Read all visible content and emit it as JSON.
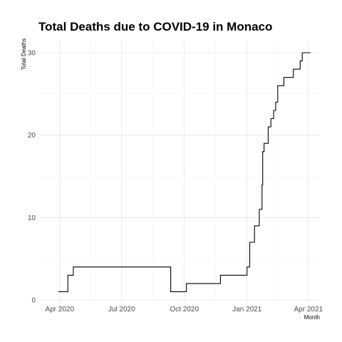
{
  "chart_data": {
    "type": "line",
    "title": "Total Deaths due to COVID-19 in Monaco",
    "xlabel": "Month",
    "ylabel": "Total Deaths",
    "xlim": [
      "2020-03-03",
      "2021-04-19"
    ],
    "ylim": [
      0,
      30
    ],
    "grid": true,
    "legend": "none",
    "x_ticks": [
      {
        "date": "2020-04-01",
        "label": "Apr 2020"
      },
      {
        "date": "2020-07-01",
        "label": "Jul 2020"
      },
      {
        "date": "2020-10-01",
        "label": "Oct 2020"
      },
      {
        "date": "2021-01-01",
        "label": "Jan 2021"
      },
      {
        "date": "2021-04-01",
        "label": "Apr 2021"
      }
    ],
    "y_ticks": [
      0,
      10,
      20,
      30
    ],
    "series": [
      {
        "color": "#000000",
        "points": [
          {
            "x": "2020-03-30",
            "y": 1
          },
          {
            "x": "2020-04-13",
            "y": 3
          },
          {
            "x": "2020-04-21",
            "y": 4
          },
          {
            "x": "2020-09-11",
            "y": 1
          },
          {
            "x": "2020-10-04",
            "y": 2
          },
          {
            "x": "2020-11-23",
            "y": 3
          },
          {
            "x": "2021-01-01",
            "y": 4
          },
          {
            "x": "2021-01-05",
            "y": 7
          },
          {
            "x": "2021-01-12",
            "y": 9
          },
          {
            "x": "2021-01-19",
            "y": 11
          },
          {
            "x": "2021-01-23",
            "y": 14
          },
          {
            "x": "2021-01-24",
            "y": 18
          },
          {
            "x": "2021-01-26",
            "y": 19
          },
          {
            "x": "2021-02-01",
            "y": 21
          },
          {
            "x": "2021-02-05",
            "y": 22
          },
          {
            "x": "2021-02-09",
            "y": 23
          },
          {
            "x": "2021-02-12",
            "y": 24
          },
          {
            "x": "2021-02-15",
            "y": 26
          },
          {
            "x": "2021-02-24",
            "y": 27
          },
          {
            "x": "2021-03-10",
            "y": 28
          },
          {
            "x": "2021-03-20",
            "y": 29
          },
          {
            "x": "2021-03-23",
            "y": 30
          },
          {
            "x": "2021-04-04",
            "y": 30
          }
        ]
      }
    ]
  }
}
